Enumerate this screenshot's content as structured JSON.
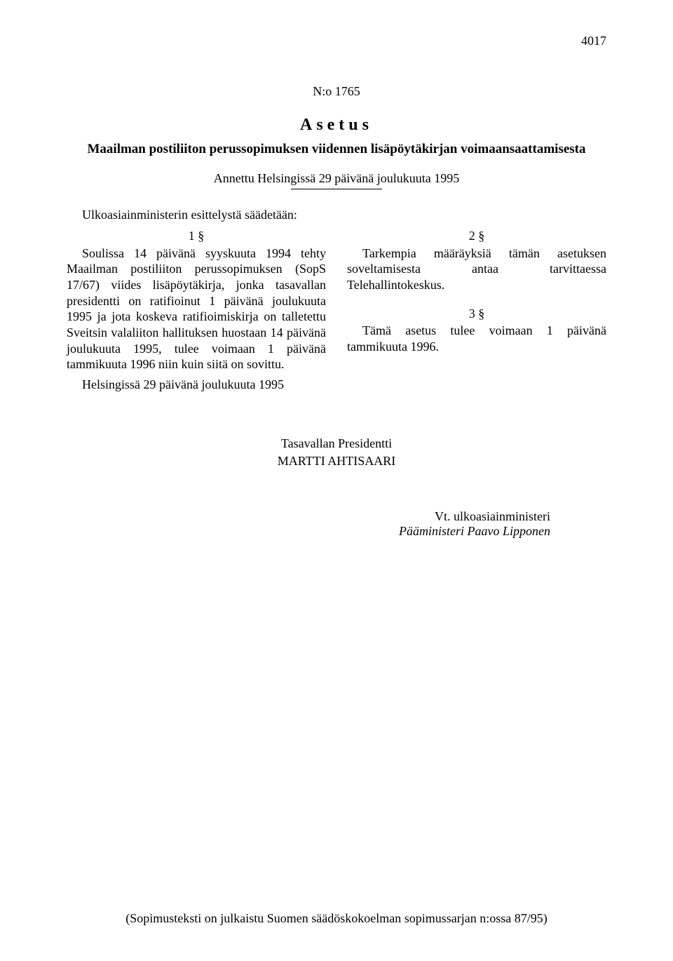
{
  "page_number": "4017",
  "doc_number": "N:o 1765",
  "doc_type": "Asetus",
  "doc_title": "Maailman postiliiton perussopimuksen viidennen lisäpöytäkirjan voimaansaattamisesta",
  "doc_given": "Annettu Helsingissä 29 päivänä joulukuuta 1995",
  "intro": "Ulkoasiainministerin esittelystä säädetään:",
  "left_col": {
    "section": "1 §",
    "text": "Soulissa 14 päivänä syyskuuta 1994 tehty Maailman postiliiton perussopimuksen (SopS 17/67) viides lisäpöytäkirja, jonka tasavallan presidentti on ratifioinut 1 päivänä joulukuuta 1995 ja jota koskeva ratifioimiskirja on talletettu Sveitsin valaliiton hallituksen huostaan 14 päivänä joulukuuta 1995, tulee voimaan 1 päivänä tammikuuta 1996 niin kuin siitä on sovittu."
  },
  "right_col": {
    "section2": "2 §",
    "text2": "Tarkempia määräyksiä tämän asetuksen soveltamisesta antaa tarvittaessa Telehallintokeskus.",
    "section3": "3 §",
    "text3": "Tämä asetus tulee voimaan 1 päivänä tammikuuta 1996."
  },
  "closing": "Helsingissä 29 päivänä joulukuuta 1995",
  "signatures": {
    "title": "Tasavallan Presidentti",
    "name": "MARTTI AHTISAARI"
  },
  "countersig": {
    "role": "Vt. ulkoasiainministeri",
    "title_name": "Pääministeri Paavo Lipponen"
  },
  "footnote": "(Sopimusteksti on julkaistu Suomen säädöskokoelman sopimussarjan n:ossa 87/95)"
}
